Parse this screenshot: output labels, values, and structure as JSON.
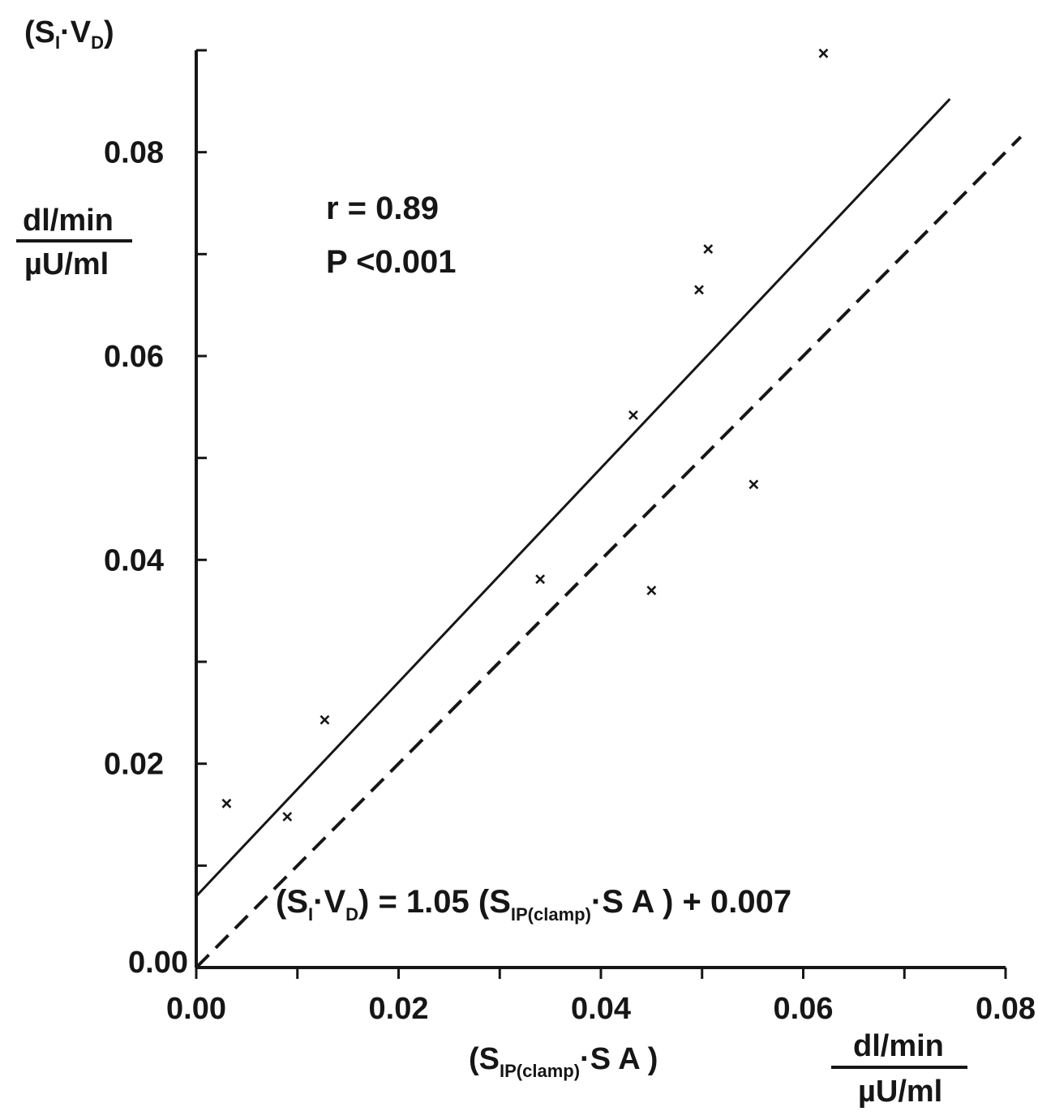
{
  "chart_data": {
    "type": "scatter",
    "title": "",
    "xlabel": {
      "main": "S",
      "sub": "IP(clamp)",
      "rest": "·S A",
      "unit_numerator": "dl/min",
      "unit_denominator": "µU/ml"
    },
    "ylabel": {
      "main": "S",
      "sub": "I",
      "dot": "·V",
      "sub2": "D",
      "unit_numerator": "dl/min",
      "unit_denominator": "µU/ml"
    },
    "xlim": [
      0,
      0.08
    ],
    "ylim": [
      0,
      0.09
    ],
    "x_ticks": [
      "0.00",
      "0.02",
      "0.04",
      "0.06",
      "0.08"
    ],
    "y_ticks": [
      "0.00",
      "0.02",
      "0.04",
      "0.06",
      "0.08"
    ],
    "x_tick_values": [
      0,
      0.02,
      0.04,
      0.06,
      0.08
    ],
    "y_tick_values": [
      0,
      0.02,
      0.04,
      0.06,
      0.08
    ],
    "grid": false,
    "legend": "none",
    "marker": "x",
    "points": [
      {
        "x": 0.003,
        "y": 0.0161
      },
      {
        "x": 0.009,
        "y": 0.0148
      },
      {
        "x": 0.0127,
        "y": 0.0243
      },
      {
        "x": 0.034,
        "y": 0.0381
      },
      {
        "x": 0.0432,
        "y": 0.0542
      },
      {
        "x": 0.045,
        "y": 0.037
      },
      {
        "x": 0.0497,
        "y": 0.0665
      },
      {
        "x": 0.0506,
        "y": 0.0705
      },
      {
        "x": 0.0551,
        "y": 0.0474
      },
      {
        "x": 0.062,
        "y": 0.0897
      }
    ],
    "lines": [
      {
        "style": "solid",
        "slope": 1.05,
        "intercept": 0.007,
        "x_range": [
          0,
          0.0745
        ]
      },
      {
        "style": "dashed",
        "slope": 1,
        "intercept": 0,
        "x_range": [
          0,
          0.0815
        ]
      }
    ],
    "annotations": {
      "r": "r = 0.89",
      "p": "P <0.001",
      "equation": {
        "open": "(S",
        "sub1": "I",
        "mid1": "·V",
        "sub2": "D",
        "mid2": ") = 1.05 (S",
        "sub3": "IP(clamp)",
        "mid3": "·S A ) + 0.007"
      }
    }
  }
}
